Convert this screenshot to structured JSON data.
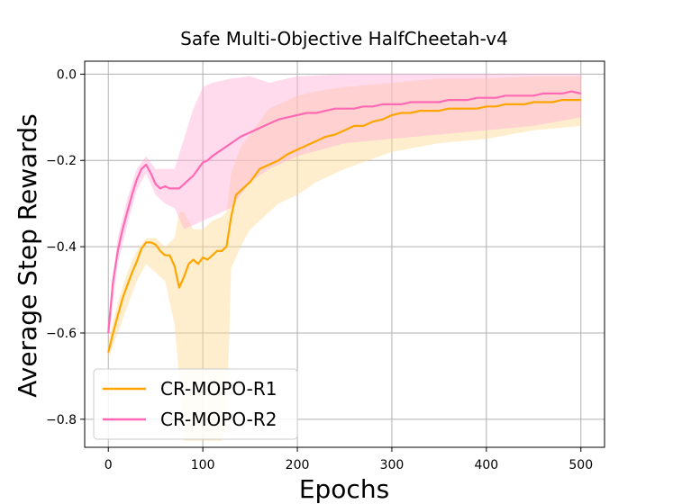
{
  "chart_data": {
    "type": "line",
    "title": "Safe Multi-Objective HalfCheetah-v4",
    "xlabel": "Epochs",
    "ylabel": "Average Step Rewards",
    "xlim": [
      -25,
      525
    ],
    "ylim": [
      -0.865,
      0.03
    ],
    "xticks": [
      0,
      100,
      200,
      300,
      400,
      500
    ],
    "xtick_labels": [
      "0",
      "100",
      "200",
      "300",
      "400",
      "500"
    ],
    "yticks": [
      0.0,
      -0.2,
      -0.4,
      -0.6,
      -0.8
    ],
    "ytick_labels": [
      "0.0",
      "−0.2",
      "−0.4",
      "−0.6",
      "−0.8"
    ],
    "grid": true,
    "legend_position": "lower-left",
    "series": [
      {
        "name": "CR-MOPO-R1",
        "color": "#ffa500",
        "band_color": "#ffd990",
        "points": [
          [
            0,
            -0.645
          ],
          [
            5,
            -0.6
          ],
          [
            10,
            -0.56
          ],
          [
            15,
            -0.52
          ],
          [
            20,
            -0.49
          ],
          [
            25,
            -0.46
          ],
          [
            30,
            -0.435
          ],
          [
            35,
            -0.405
          ],
          [
            40,
            -0.39
          ],
          [
            45,
            -0.39
          ],
          [
            50,
            -0.395
          ],
          [
            55,
            -0.41
          ],
          [
            60,
            -0.42
          ],
          [
            65,
            -0.42
          ],
          [
            70,
            -0.445
          ],
          [
            75,
            -0.495
          ],
          [
            80,
            -0.47
          ],
          [
            85,
            -0.44
          ],
          [
            90,
            -0.43
          ],
          [
            95,
            -0.44
          ],
          [
            100,
            -0.425
          ],
          [
            105,
            -0.43
          ],
          [
            110,
            -0.42
          ],
          [
            115,
            -0.41
          ],
          [
            120,
            -0.41
          ],
          [
            125,
            -0.4
          ],
          [
            130,
            -0.33
          ],
          [
            135,
            -0.28
          ],
          [
            140,
            -0.27
          ],
          [
            150,
            -0.25
          ],
          [
            160,
            -0.22
          ],
          [
            170,
            -0.21
          ],
          [
            180,
            -0.2
          ],
          [
            190,
            -0.185
          ],
          [
            200,
            -0.175
          ],
          [
            210,
            -0.165
          ],
          [
            220,
            -0.155
          ],
          [
            230,
            -0.145
          ],
          [
            240,
            -0.14
          ],
          [
            250,
            -0.13
          ],
          [
            260,
            -0.12
          ],
          [
            270,
            -0.12
          ],
          [
            280,
            -0.11
          ],
          [
            290,
            -0.105
          ],
          [
            300,
            -0.095
          ],
          [
            310,
            -0.09
          ],
          [
            320,
            -0.09
          ],
          [
            330,
            -0.085
          ],
          [
            340,
            -0.085
          ],
          [
            350,
            -0.085
          ],
          [
            360,
            -0.08
          ],
          [
            370,
            -0.08
          ],
          [
            380,
            -0.08
          ],
          [
            390,
            -0.08
          ],
          [
            400,
            -0.075
          ],
          [
            410,
            -0.075
          ],
          [
            420,
            -0.07
          ],
          [
            430,
            -0.07
          ],
          [
            440,
            -0.07
          ],
          [
            450,
            -0.065
          ],
          [
            460,
            -0.065
          ],
          [
            470,
            -0.065
          ],
          [
            480,
            -0.06
          ],
          [
            490,
            -0.06
          ],
          [
            500,
            -0.06
          ]
        ],
        "band_upper": [
          [
            0,
            -0.62
          ],
          [
            10,
            -0.53
          ],
          [
            20,
            -0.46
          ],
          [
            30,
            -0.41
          ],
          [
            40,
            -0.38
          ],
          [
            50,
            -0.38
          ],
          [
            60,
            -0.4
          ],
          [
            70,
            -0.38
          ],
          [
            75,
            -0.32
          ],
          [
            80,
            -0.32
          ],
          [
            90,
            -0.36
          ],
          [
            100,
            -0.36
          ],
          [
            110,
            -0.34
          ],
          [
            120,
            -0.33
          ],
          [
            125,
            -0.32
          ],
          [
            130,
            -0.23
          ],
          [
            140,
            -0.17
          ],
          [
            150,
            -0.14
          ],
          [
            160,
            -0.11
          ],
          [
            170,
            -0.08
          ],
          [
            180,
            -0.07
          ],
          [
            190,
            -0.06
          ],
          [
            200,
            -0.05
          ],
          [
            220,
            -0.04
          ],
          [
            250,
            -0.03
          ],
          [
            300,
            -0.02
          ],
          [
            350,
            -0.01
          ],
          [
            400,
            -0.01
          ],
          [
            450,
            -0.005
          ],
          [
            500,
            -0.005
          ]
        ],
        "band_lower": [
          [
            0,
            -0.66
          ],
          [
            10,
            -0.6
          ],
          [
            20,
            -0.54
          ],
          [
            30,
            -0.48
          ],
          [
            40,
            -0.44
          ],
          [
            50,
            -0.46
          ],
          [
            60,
            -0.48
          ],
          [
            70,
            -0.58
          ],
          [
            75,
            -0.7
          ],
          [
            80,
            -0.85
          ],
          [
            90,
            -0.85
          ],
          [
            100,
            -0.85
          ],
          [
            110,
            -0.85
          ],
          [
            120,
            -0.85
          ],
          [
            125,
            -0.82
          ],
          [
            130,
            -0.45
          ],
          [
            140,
            -0.4
          ],
          [
            150,
            -0.36
          ],
          [
            160,
            -0.34
          ],
          [
            170,
            -0.32
          ],
          [
            180,
            -0.3
          ],
          [
            190,
            -0.29
          ],
          [
            200,
            -0.28
          ],
          [
            220,
            -0.25
          ],
          [
            250,
            -0.22
          ],
          [
            300,
            -0.18
          ],
          [
            350,
            -0.16
          ],
          [
            400,
            -0.15
          ],
          [
            450,
            -0.13
          ],
          [
            500,
            -0.12
          ]
        ]
      },
      {
        "name": "CR-MOPO-R2",
        "color": "#ff69b4",
        "band_color": "#ffb0d6",
        "points": [
          [
            0,
            -0.6
          ],
          [
            5,
            -0.48
          ],
          [
            10,
            -0.41
          ],
          [
            15,
            -0.36
          ],
          [
            20,
            -0.32
          ],
          [
            25,
            -0.28
          ],
          [
            30,
            -0.245
          ],
          [
            35,
            -0.22
          ],
          [
            40,
            -0.21
          ],
          [
            45,
            -0.23
          ],
          [
            50,
            -0.255
          ],
          [
            55,
            -0.265
          ],
          [
            60,
            -0.26
          ],
          [
            65,
            -0.265
          ],
          [
            70,
            -0.265
          ],
          [
            75,
            -0.265
          ],
          [
            80,
            -0.255
          ],
          [
            85,
            -0.245
          ],
          [
            90,
            -0.235
          ],
          [
            95,
            -0.22
          ],
          [
            100,
            -0.205
          ],
          [
            105,
            -0.2
          ],
          [
            110,
            -0.19
          ],
          [
            120,
            -0.175
          ],
          [
            130,
            -0.16
          ],
          [
            140,
            -0.145
          ],
          [
            150,
            -0.135
          ],
          [
            160,
            -0.125
          ],
          [
            170,
            -0.115
          ],
          [
            180,
            -0.105
          ],
          [
            190,
            -0.1
          ],
          [
            200,
            -0.095
          ],
          [
            210,
            -0.09
          ],
          [
            220,
            -0.09
          ],
          [
            230,
            -0.085
          ],
          [
            240,
            -0.08
          ],
          [
            250,
            -0.08
          ],
          [
            260,
            -0.08
          ],
          [
            270,
            -0.075
          ],
          [
            280,
            -0.075
          ],
          [
            290,
            -0.07
          ],
          [
            300,
            -0.07
          ],
          [
            310,
            -0.07
          ],
          [
            320,
            -0.065
          ],
          [
            330,
            -0.065
          ],
          [
            340,
            -0.065
          ],
          [
            350,
            -0.065
          ],
          [
            360,
            -0.06
          ],
          [
            370,
            -0.06
          ],
          [
            380,
            -0.06
          ],
          [
            390,
            -0.055
          ],
          [
            400,
            -0.055
          ],
          [
            410,
            -0.055
          ],
          [
            420,
            -0.05
          ],
          [
            430,
            -0.05
          ],
          [
            440,
            -0.05
          ],
          [
            450,
            -0.05
          ],
          [
            460,
            -0.045
          ],
          [
            470,
            -0.045
          ],
          [
            480,
            -0.045
          ],
          [
            490,
            -0.04
          ],
          [
            500,
            -0.045
          ]
        ],
        "band_upper": [
          [
            0,
            -0.58
          ],
          [
            10,
            -0.38
          ],
          [
            20,
            -0.29
          ],
          [
            30,
            -0.22
          ],
          [
            40,
            -0.19
          ],
          [
            50,
            -0.22
          ],
          [
            60,
            -0.22
          ],
          [
            70,
            -0.22
          ],
          [
            80,
            -0.15
          ],
          [
            90,
            -0.08
          ],
          [
            100,
            -0.03
          ],
          [
            110,
            -0.02
          ],
          [
            130,
            -0.01
          ],
          [
            150,
            -0.005
          ],
          [
            170,
            -0.02
          ],
          [
            200,
            -0.005
          ],
          [
            250,
            0.0
          ],
          [
            300,
            0.0
          ],
          [
            400,
            0.0
          ],
          [
            500,
            0.0
          ]
        ],
        "band_lower": [
          [
            0,
            -0.62
          ],
          [
            10,
            -0.44
          ],
          [
            20,
            -0.35
          ],
          [
            30,
            -0.27
          ],
          [
            40,
            -0.23
          ],
          [
            50,
            -0.28
          ],
          [
            60,
            -0.3
          ],
          [
            70,
            -0.31
          ],
          [
            80,
            -0.36
          ],
          [
            90,
            -0.35
          ],
          [
            100,
            -0.34
          ],
          [
            110,
            -0.33
          ],
          [
            120,
            -0.32
          ],
          [
            130,
            -0.31
          ],
          [
            140,
            -0.28
          ],
          [
            150,
            -0.25
          ],
          [
            170,
            -0.22
          ],
          [
            200,
            -0.19
          ],
          [
            250,
            -0.16
          ],
          [
            300,
            -0.15
          ],
          [
            350,
            -0.14
          ],
          [
            400,
            -0.13
          ],
          [
            450,
            -0.12
          ],
          [
            500,
            -0.1
          ]
        ]
      }
    ]
  }
}
